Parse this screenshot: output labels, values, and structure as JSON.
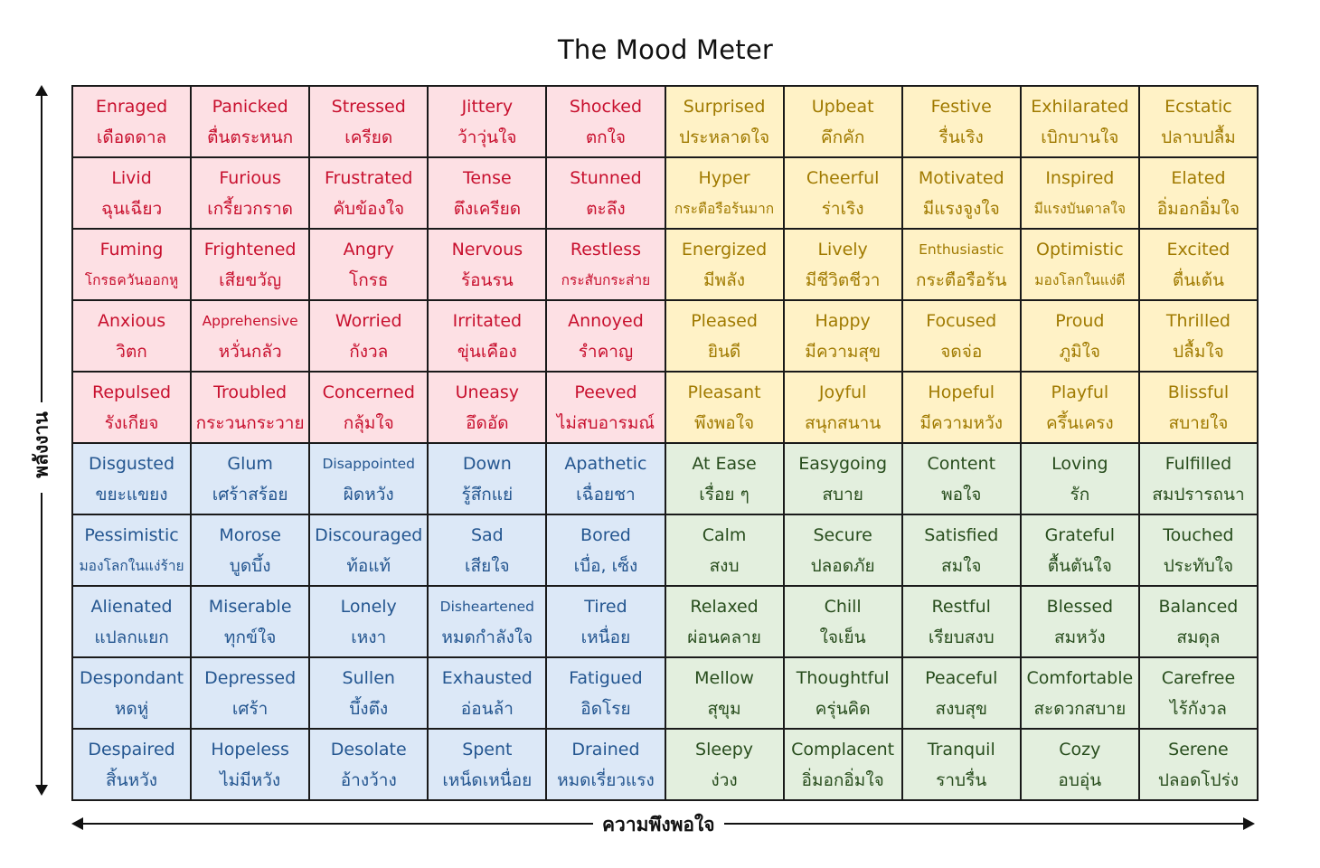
{
  "title": "The Mood Meter",
  "axis_vertical_label": "พลังงาน",
  "axis_horizontal_label": "ความพึงพอใจ",
  "colors": {
    "red_quadrant_bg": "#fde0e4",
    "red_quadrant_text": "#c8102e",
    "yellow_quadrant_bg": "#fff2c6",
    "yellow_quadrant_text": "#a07a00",
    "blue_quadrant_bg": "#dce8f7",
    "blue_quadrant_text": "#245690",
    "green_quadrant_bg": "#e3efde",
    "green_quadrant_text": "#284d1d"
  },
  "rows": [
    [
      {
        "en": "Enraged",
        "th": "เดือดดาล",
        "quadrant": "red"
      },
      {
        "en": "Panicked",
        "th": "ตื่นตระหนก",
        "quadrant": "red"
      },
      {
        "en": "Stressed",
        "th": "เครียด",
        "quadrant": "red"
      },
      {
        "en": "Jittery",
        "th": "ว้าวุ่นใจ",
        "quadrant": "red"
      },
      {
        "en": "Shocked",
        "th": "ตกใจ",
        "quadrant": "red"
      },
      {
        "en": "Surprised",
        "th": "ประหลาดใจ",
        "quadrant": "yellow"
      },
      {
        "en": "Upbeat",
        "th": "คึกคัก",
        "quadrant": "yellow"
      },
      {
        "en": "Festive",
        "th": "รื่นเริง",
        "quadrant": "yellow"
      },
      {
        "en": "Exhilarated",
        "th": "เบิกบานใจ",
        "quadrant": "yellow"
      },
      {
        "en": "Ecstatic",
        "th": "ปลาบปลื้ม",
        "quadrant": "yellow"
      }
    ],
    [
      {
        "en": "Livid",
        "th": "ฉุนเฉียว",
        "quadrant": "red"
      },
      {
        "en": "Furious",
        "th": "เกรี้ยวกราด",
        "quadrant": "red"
      },
      {
        "en": "Frustrated",
        "th": "คับข้องใจ",
        "quadrant": "red"
      },
      {
        "en": "Tense",
        "th": "ตึงเครียด",
        "quadrant": "red"
      },
      {
        "en": "Stunned",
        "th": "ตะลึง",
        "quadrant": "red"
      },
      {
        "en": "Hyper",
        "th": "กระตือรือร้นมาก",
        "quadrant": "yellow"
      },
      {
        "en": "Cheerful",
        "th": "ร่าเริง",
        "quadrant": "yellow"
      },
      {
        "en": "Motivated",
        "th": "มีแรงจูงใจ",
        "quadrant": "yellow"
      },
      {
        "en": "Inspired",
        "th": "มีแรงบันดาลใจ",
        "quadrant": "yellow"
      },
      {
        "en": "Elated",
        "th": "อิ่มอกอิ่มใจ",
        "quadrant": "yellow"
      }
    ],
    [
      {
        "en": "Fuming",
        "th": "โกรธควันออกหู",
        "quadrant": "red"
      },
      {
        "en": "Frightened",
        "th": "เสียขวัญ",
        "quadrant": "red"
      },
      {
        "en": "Angry",
        "th": "โกรธ",
        "quadrant": "red"
      },
      {
        "en": "Nervous",
        "th": "ร้อนรน",
        "quadrant": "red"
      },
      {
        "en": "Restless",
        "th": "กระสับกระส่าย",
        "quadrant": "red"
      },
      {
        "en": "Energized",
        "th": "มีพลัง",
        "quadrant": "yellow"
      },
      {
        "en": "Lively",
        "th": "มีชีวิตชีวา",
        "quadrant": "yellow"
      },
      {
        "en": "Enthusiastic",
        "th": "กระตือรือร้น",
        "quadrant": "yellow"
      },
      {
        "en": "Optimistic",
        "th": "มองโลกในแง่ดี",
        "quadrant": "yellow"
      },
      {
        "en": "Excited",
        "th": "ตื่นเต้น",
        "quadrant": "yellow"
      }
    ],
    [
      {
        "en": "Anxious",
        "th": "วิตก",
        "quadrant": "red"
      },
      {
        "en": "Apprehensive",
        "th": "หวั่นกลัว",
        "quadrant": "red"
      },
      {
        "en": "Worried",
        "th": "กังวล",
        "quadrant": "red"
      },
      {
        "en": "Irritated",
        "th": "ขุ่นเคือง",
        "quadrant": "red"
      },
      {
        "en": "Annoyed",
        "th": "รำคาญ",
        "quadrant": "red"
      },
      {
        "en": "Pleased",
        "th": "ยินดี",
        "quadrant": "yellow"
      },
      {
        "en": "Happy",
        "th": "มีความสุข",
        "quadrant": "yellow"
      },
      {
        "en": "Focused",
        "th": "จดจ่อ",
        "quadrant": "yellow"
      },
      {
        "en": "Proud",
        "th": "ภูมิใจ",
        "quadrant": "yellow"
      },
      {
        "en": "Thrilled",
        "th": "ปลื้มใจ",
        "quadrant": "yellow"
      }
    ],
    [
      {
        "en": "Repulsed",
        "th": "รังเกียจ",
        "quadrant": "red"
      },
      {
        "en": "Troubled",
        "th": "กระวนกระวาย",
        "quadrant": "red"
      },
      {
        "en": "Concerned",
        "th": "กลุ้มใจ",
        "quadrant": "red"
      },
      {
        "en": "Uneasy",
        "th": "อึดอัด",
        "quadrant": "red"
      },
      {
        "en": "Peeved",
        "th": "ไม่สบอารมณ์",
        "quadrant": "red"
      },
      {
        "en": "Pleasant",
        "th": "พึงพอใจ",
        "quadrant": "yellow"
      },
      {
        "en": "Joyful",
        "th": "สนุกสนาน",
        "quadrant": "yellow"
      },
      {
        "en": "Hopeful",
        "th": "มีความหวัง",
        "quadrant": "yellow"
      },
      {
        "en": "Playful",
        "th": "ครึ้นเครง",
        "quadrant": "yellow"
      },
      {
        "en": "Blissful",
        "th": "สบายใจ",
        "quadrant": "yellow"
      }
    ],
    [
      {
        "en": "Disgusted",
        "th": "ขยะแขยง",
        "quadrant": "blue"
      },
      {
        "en": "Glum",
        "th": "เศร้าสร้อย",
        "quadrant": "blue"
      },
      {
        "en": "Disappointed",
        "th": "ผิดหวัง",
        "quadrant": "blue"
      },
      {
        "en": "Down",
        "th": "รู้สึกแย่",
        "quadrant": "blue"
      },
      {
        "en": "Apathetic",
        "th": "เฉื่อยชา",
        "quadrant": "blue"
      },
      {
        "en": "At Ease",
        "th": "เรื่อย ๆ",
        "quadrant": "green"
      },
      {
        "en": "Easygoing",
        "th": "สบาย",
        "quadrant": "green"
      },
      {
        "en": "Content",
        "th": "พอใจ",
        "quadrant": "green"
      },
      {
        "en": "Loving",
        "th": "รัก",
        "quadrant": "green"
      },
      {
        "en": "Fulfilled",
        "th": "สมปรารถนา",
        "quadrant": "green"
      }
    ],
    [
      {
        "en": "Pessimistic",
        "th": "มองโลกในแง่ร้าย",
        "quadrant": "blue"
      },
      {
        "en": "Morose",
        "th": "บูดบึ้ง",
        "quadrant": "blue"
      },
      {
        "en": "Discouraged",
        "th": "ท้อแท้",
        "quadrant": "blue"
      },
      {
        "en": "Sad",
        "th": "เสียใจ",
        "quadrant": "blue"
      },
      {
        "en": "Bored",
        "th": "เบื่อ, เซ็ง",
        "quadrant": "blue"
      },
      {
        "en": "Calm",
        "th": "สงบ",
        "quadrant": "green"
      },
      {
        "en": "Secure",
        "th": "ปลอดภัย",
        "quadrant": "green"
      },
      {
        "en": "Satisfied",
        "th": "สมใจ",
        "quadrant": "green"
      },
      {
        "en": "Grateful",
        "th": "ตื้นตันใจ",
        "quadrant": "green"
      },
      {
        "en": "Touched",
        "th": "ประทับใจ",
        "quadrant": "green"
      }
    ],
    [
      {
        "en": "Alienated",
        "th": "แปลกแยก",
        "quadrant": "blue"
      },
      {
        "en": "Miserable",
        "th": "ทุกข์ใจ",
        "quadrant": "blue"
      },
      {
        "en": "Lonely",
        "th": "เหงา",
        "quadrant": "blue"
      },
      {
        "en": "Disheartened",
        "th": "หมดกำลังใจ",
        "quadrant": "blue"
      },
      {
        "en": "Tired",
        "th": "เหนื่อย",
        "quadrant": "blue"
      },
      {
        "en": "Relaxed",
        "th": "ผ่อนคลาย",
        "quadrant": "green"
      },
      {
        "en": "Chill",
        "th": "ใจเย็น",
        "quadrant": "green"
      },
      {
        "en": "Restful",
        "th": "เรียบสงบ",
        "quadrant": "green"
      },
      {
        "en": "Blessed",
        "th": "สมหวัง",
        "quadrant": "green"
      },
      {
        "en": "Balanced",
        "th": "สมดุล",
        "quadrant": "green"
      }
    ],
    [
      {
        "en": "Despondant",
        "th": "หดหู่",
        "quadrant": "blue"
      },
      {
        "en": "Depressed",
        "th": "เศร้า",
        "quadrant": "blue"
      },
      {
        "en": "Sullen",
        "th": "บึ้งตึง",
        "quadrant": "blue"
      },
      {
        "en": "Exhausted",
        "th": "อ่อนล้า",
        "quadrant": "blue"
      },
      {
        "en": "Fatigued",
        "th": "อิดโรย",
        "quadrant": "blue"
      },
      {
        "en": "Mellow",
        "th": "สุขุม",
        "quadrant": "green"
      },
      {
        "en": "Thoughtful",
        "th": "ครุ่นคิด",
        "quadrant": "green"
      },
      {
        "en": "Peaceful",
        "th": "สงบสุข",
        "quadrant": "green"
      },
      {
        "en": "Comfortable",
        "th": "สะดวกสบาย",
        "quadrant": "green"
      },
      {
        "en": "Carefree",
        "th": "ไร้กังวล",
        "quadrant": "green"
      }
    ],
    [
      {
        "en": "Despaired",
        "th": "สิ้นหวัง",
        "quadrant": "blue"
      },
      {
        "en": "Hopeless",
        "th": "ไม่มีหวัง",
        "quadrant": "blue"
      },
      {
        "en": "Desolate",
        "th": "อ้างว้าง",
        "quadrant": "blue"
      },
      {
        "en": "Spent",
        "th": "เหน็ดเหนื่อย",
        "quadrant": "blue"
      },
      {
        "en": "Drained",
        "th": "หมดเรี่ยวแรง",
        "quadrant": "blue"
      },
      {
        "en": "Sleepy",
        "th": "ง่วง",
        "quadrant": "green"
      },
      {
        "en": "Complacent",
        "th": "อิ่มอกอิ่มใจ",
        "quadrant": "green"
      },
      {
        "en": "Tranquil",
        "th": "ราบรื่น",
        "quadrant": "green"
      },
      {
        "en": "Cozy",
        "th": "อบอุ่น",
        "quadrant": "green"
      },
      {
        "en": "Serene",
        "th": "ปลอดโปร่ง",
        "quadrant": "green"
      }
    ]
  ]
}
